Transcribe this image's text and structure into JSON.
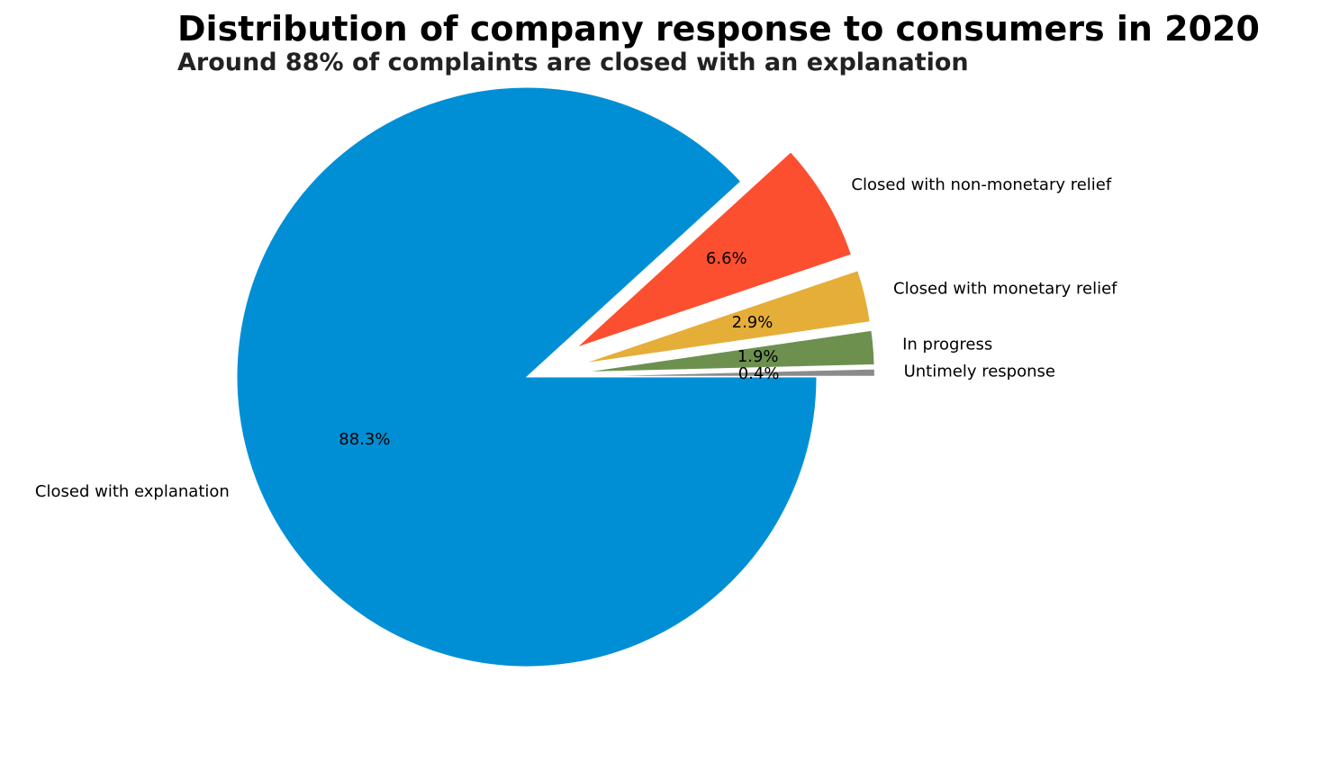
{
  "chart_data": {
    "type": "pie",
    "title": "Distribution of company response to consumers in 2020",
    "subtitle": "Around 88% of complaints are closed with an explanation",
    "start_angle_deg": 0,
    "direction": "clockwise",
    "slices": [
      {
        "label": "Closed with explanation",
        "value": 88.3,
        "pct_label": "88.3%",
        "color": "#008fd5",
        "explode": 0
      },
      {
        "label": "Closed with non-monetary relief",
        "value": 6.6,
        "pct_label": "6.6%",
        "color": "#fc4f30",
        "explode": 0.2
      },
      {
        "label": "Closed with monetary relief",
        "value": 2.9,
        "pct_label": "2.9%",
        "color": "#e5ae38",
        "explode": 0.2
      },
      {
        "label": "In progress",
        "value": 1.9,
        "pct_label": "1.9%",
        "color": "#6d904f",
        "explode": 0.2
      },
      {
        "label": "Untimely response",
        "value": 0.4,
        "pct_label": "0.4%",
        "color": "#8b8b8b",
        "explode": 0.2
      }
    ]
  }
}
